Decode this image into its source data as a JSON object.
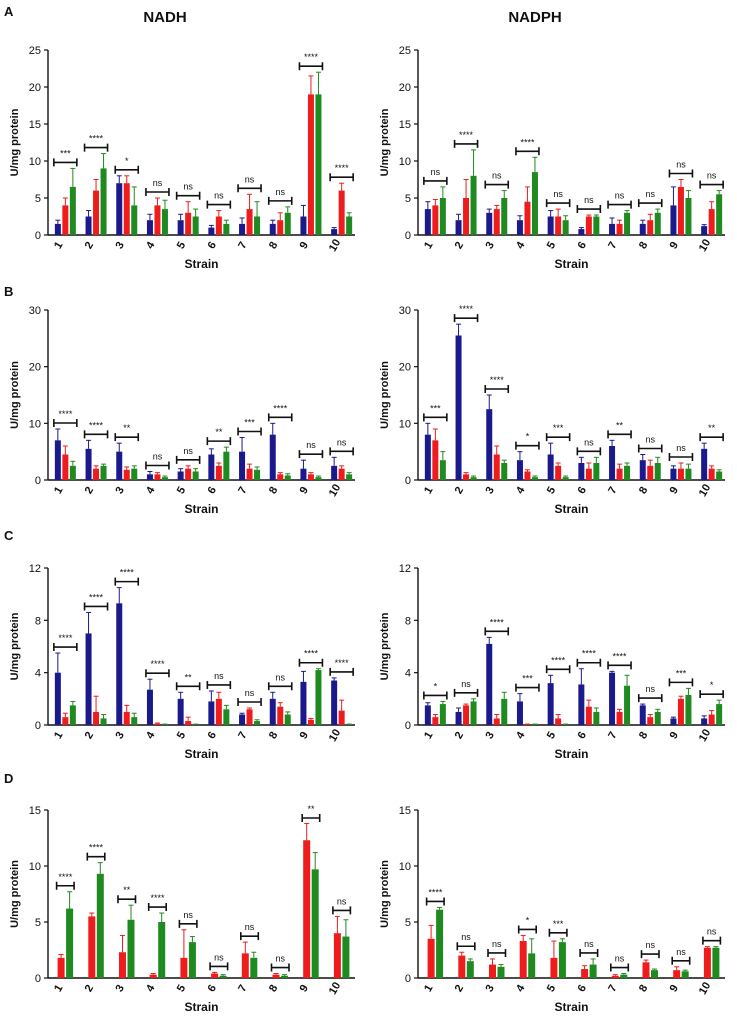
{
  "figure": {
    "columns": [
      "NADH",
      "NADPH"
    ],
    "rows": [
      "A",
      "B",
      "C",
      "D"
    ],
    "colors": {
      "blue": "#1a1a8c",
      "red": "#ee1c1c",
      "green": "#1f8a1f",
      "axis": "#111111"
    }
  },
  "chart_data": [
    {
      "type": "bar",
      "panel": "A",
      "title": "NADH",
      "xlabel": "Strain",
      "ylabel": "U/mg protein",
      "ylim": [
        0,
        25
      ],
      "yticks": [
        0,
        5,
        10,
        15,
        20,
        25
      ],
      "categories": [
        "1",
        "2",
        "3",
        "4",
        "5",
        "6",
        "7",
        "8",
        "9",
        "10"
      ],
      "series": [
        {
          "name": "blue",
          "values": [
            1.5,
            2.5,
            7,
            2,
            2,
            1,
            1.5,
            1.5,
            2.5,
            0.8
          ],
          "errors": [
            0.5,
            0.8,
            1,
            0.8,
            0.8,
            0.3,
            0.8,
            0.5,
            1.5,
            0.2
          ]
        },
        {
          "name": "red",
          "values": [
            4,
            6,
            7,
            4,
            3,
            2.5,
            3.5,
            2,
            19,
            6
          ],
          "errors": [
            1,
            1.5,
            1,
            1,
            1.5,
            0.8,
            2,
            1,
            2.5,
            1
          ]
        },
        {
          "name": "green",
          "values": [
            6.5,
            9,
            4,
            3.5,
            2.5,
            1.5,
            2.5,
            3,
            19,
            2.5
          ],
          "errors": [
            2.5,
            2,
            2.5,
            1.2,
            1,
            0.5,
            2,
            0.8,
            3,
            0.5
          ]
        }
      ],
      "significance": [
        "***",
        "****",
        "*",
        "ns",
        "ns",
        "ns",
        "ns",
        "ns",
        "****",
        "****"
      ]
    },
    {
      "type": "bar",
      "panel": "A",
      "title": "NADPH",
      "xlabel": "Strain",
      "ylabel": "U/mg protein",
      "ylim": [
        0,
        25
      ],
      "yticks": [
        0,
        5,
        10,
        15,
        20,
        25
      ],
      "categories": [
        "1",
        "2",
        "3",
        "4",
        "5",
        "6",
        "7",
        "8",
        "9",
        "10"
      ],
      "series": [
        {
          "name": "blue",
          "values": [
            3.5,
            2,
            3,
            2,
            2.5,
            0.8,
            1.5,
            1.5,
            4,
            1.2
          ],
          "errors": [
            1,
            0.8,
            0.5,
            0.6,
            0.8,
            0.2,
            0.8,
            0.5,
            2.5,
            0.2
          ]
        },
        {
          "name": "red",
          "values": [
            4,
            5,
            3.5,
            4.5,
            2.5,
            2.5,
            1.5,
            2,
            6.5,
            3.5
          ],
          "errors": [
            0.8,
            2.5,
            0.5,
            2,
            1,
            0.2,
            0.5,
            0.8,
            1,
            1
          ]
        },
        {
          "name": "green",
          "values": [
            5,
            8,
            5,
            8.5,
            2,
            2.5,
            3,
            3,
            5,
            5.5
          ],
          "errors": [
            1.5,
            3.5,
            1,
            2,
            0.6,
            0.2,
            0.3,
            0.5,
            1,
            0.5
          ]
        }
      ],
      "significance": [
        "ns",
        "****",
        "ns",
        "****",
        "ns",
        "ns",
        "ns",
        "ns",
        "ns",
        "ns"
      ]
    },
    {
      "type": "bar",
      "panel": "B",
      "title": "",
      "xlabel": "Strain",
      "ylabel": "U/mg protein",
      "ylim": [
        0,
        30
      ],
      "yticks": [
        0,
        10,
        20,
        30
      ],
      "categories": [
        "1",
        "2",
        "3",
        "4",
        "5",
        "6",
        "7",
        "8",
        "9",
        "10"
      ],
      "series": [
        {
          "name": "blue",
          "values": [
            7,
            5.5,
            5,
            1,
            1.5,
            4.5,
            5,
            8,
            2,
            2.5
          ],
          "errors": [
            2,
            1.5,
            1.5,
            0.5,
            0.5,
            1,
            2.5,
            2,
            1.5,
            1.5
          ]
        },
        {
          "name": "red",
          "values": [
            4.5,
            2,
            1.8,
            1,
            2,
            2.5,
            2,
            1,
            1,
            2
          ],
          "errors": [
            1.5,
            0.5,
            0.5,
            0.3,
            0.5,
            0.5,
            0.8,
            0.3,
            0.3,
            0.5
          ]
        },
        {
          "name": "green",
          "values": [
            2.5,
            2.5,
            2,
            0.5,
            1.5,
            5,
            1.8,
            0.8,
            0.5,
            1
          ],
          "errors": [
            0.8,
            0.3,
            0.5,
            0.2,
            0.5,
            0.8,
            0.5,
            0.3,
            0.2,
            0.3
          ]
        }
      ],
      "significance": [
        "****",
        "****",
        "**",
        "ns",
        "ns",
        "**",
        "***",
        "****",
        "ns",
        "ns"
      ]
    },
    {
      "type": "bar",
      "panel": "B",
      "title": "",
      "xlabel": "Strain",
      "ylabel": "U/mg protein",
      "ylim": [
        0,
        30
      ],
      "yticks": [
        0,
        10,
        20,
        30
      ],
      "categories": [
        "1",
        "2",
        "3",
        "4",
        "5",
        "6",
        "7",
        "8",
        "9",
        "10"
      ],
      "series": [
        {
          "name": "blue",
          "values": [
            8,
            25.5,
            12.5,
            3.5,
            4.5,
            3,
            6,
            3.5,
            2,
            5.5
          ],
          "errors": [
            2,
            2,
            2.5,
            1.5,
            2,
            1,
            1,
            1,
            0.5,
            1
          ]
        },
        {
          "name": "red",
          "values": [
            7,
            1,
            4.5,
            1.5,
            2.5,
            2,
            2,
            2.5,
            2,
            2
          ],
          "errors": [
            2,
            0.3,
            1.5,
            0.3,
            0.5,
            1,
            0.8,
            1,
            1,
            0.5
          ]
        },
        {
          "name": "green",
          "values": [
            3.5,
            0.5,
            3,
            0.5,
            0.5,
            3,
            2.5,
            3,
            2,
            1.5
          ],
          "errors": [
            1.5,
            0.2,
            0.5,
            0.2,
            0.2,
            1,
            0.5,
            1,
            0.8,
            0.3
          ]
        }
      ],
      "significance": [
        "***",
        "****",
        "****",
        "*",
        "***",
        "ns",
        "**",
        "ns",
        "ns",
        "**"
      ]
    },
    {
      "type": "bar",
      "panel": "C",
      "title": "",
      "xlabel": "Strain",
      "ylabel": "U/mg protein",
      "ylim": [
        0,
        12
      ],
      "yticks": [
        0,
        4,
        8,
        12
      ],
      "categories": [
        "1",
        "2",
        "3",
        "4",
        "5",
        "6",
        "7",
        "8",
        "9",
        "10"
      ],
      "series": [
        {
          "name": "blue",
          "values": [
            4,
            7,
            9.3,
            2.7,
            2,
            1.8,
            0.8,
            2,
            3.3,
            3.4
          ],
          "errors": [
            1.5,
            1.6,
            1.2,
            0.8,
            0.5,
            0.8,
            0.1,
            0.5,
            0.8,
            0.2
          ]
        },
        {
          "name": "red",
          "values": [
            0.6,
            1,
            1,
            0.1,
            0.3,
            2,
            1.2,
            1.4,
            0.4,
            1.1
          ],
          "errors": [
            0.3,
            1.2,
            0.5,
            0.05,
            0.3,
            0.5,
            0.1,
            0.3,
            0.1,
            0.8
          ]
        },
        {
          "name": "green",
          "values": [
            1.5,
            0.5,
            0.6,
            0.05,
            0.05,
            1.2,
            0.3,
            0.8,
            4.2,
            0.05
          ],
          "errors": [
            0.3,
            0.3,
            0.3,
            0.02,
            0.02,
            0.3,
            0.1,
            0.2,
            0.1,
            0.02
          ]
        }
      ],
      "significance": [
        "****",
        "****",
        "****",
        "****",
        "**",
        "ns",
        "ns",
        "ns",
        "****",
        "****"
      ]
    },
    {
      "type": "bar",
      "panel": "C",
      "title": "",
      "xlabel": "Strain",
      "ylabel": "U/mg protein",
      "ylim": [
        0,
        12
      ],
      "yticks": [
        0,
        4,
        8,
        12
      ],
      "categories": [
        "1",
        "2",
        "3",
        "4",
        "5",
        "6",
        "7",
        "8",
        "9",
        "10"
      ],
      "series": [
        {
          "name": "blue",
          "values": [
            1.5,
            1,
            6.2,
            1.8,
            3.2,
            3.1,
            4,
            1.5,
            0.5,
            0.5
          ],
          "errors": [
            0.2,
            0.3,
            0.5,
            0.6,
            0.6,
            1.2,
            0.1,
            0.1,
            0.1,
            0.2
          ]
        },
        {
          "name": "red",
          "values": [
            0.6,
            1.5,
            0.5,
            0.05,
            0.5,
            1.4,
            1,
            0.6,
            2,
            0.8
          ],
          "errors": [
            0.2,
            0.1,
            0.3,
            0.02,
            0.3,
            0.5,
            0.2,
            0.2,
            0.2,
            0.3
          ]
        },
        {
          "name": "green",
          "values": [
            1.6,
            1.8,
            2,
            0.05,
            0.05,
            1,
            3,
            1,
            2.3,
            1.6
          ],
          "errors": [
            0.2,
            0.2,
            0.5,
            0.02,
            0.02,
            0.3,
            0.8,
            0.2,
            0.5,
            0.3
          ]
        }
      ],
      "significance": [
        "*",
        "ns",
        "****",
        "***",
        "****",
        "****",
        "****",
        "ns",
        "***",
        "*"
      ]
    },
    {
      "type": "bar",
      "panel": "D",
      "title": "",
      "xlabel": "Strain",
      "ylabel": "U/mg protein",
      "ylim": [
        0,
        15
      ],
      "yticks": [
        0,
        5,
        10,
        15
      ],
      "categories": [
        "1",
        "2",
        "3",
        "4",
        "5",
        "6",
        "7",
        "8",
        "9",
        "10"
      ],
      "series": [
        {
          "name": "red",
          "values": [
            1.8,
            5.5,
            2.3,
            0.3,
            1.8,
            0.4,
            2.2,
            0.3,
            12.3,
            4
          ],
          "errors": [
            0.3,
            0.3,
            1.5,
            0.1,
            2.5,
            0.1,
            1,
            0.1,
            1.5,
            1.5
          ]
        },
        {
          "name": "green",
          "values": [
            6.2,
            9.3,
            5.2,
            5,
            3.2,
            0.2,
            1.8,
            0.2,
            9.7,
            3.7
          ],
          "errors": [
            1.5,
            1,
            1.3,
            0.8,
            0.5,
            0.1,
            0.5,
            0.1,
            1.5,
            1.5
          ]
        }
      ],
      "significance": [
        "****",
        "****",
        "**",
        "****",
        "ns",
        "ns",
        "ns",
        "ns",
        "**",
        "ns"
      ]
    },
    {
      "type": "bar",
      "panel": "D",
      "title": "",
      "xlabel": "Strain",
      "ylabel": "U/mg protein",
      "ylim": [
        0,
        15
      ],
      "yticks": [
        0,
        5,
        10,
        15
      ],
      "categories": [
        "1",
        "2",
        "3",
        "4",
        "5",
        "6",
        "7",
        "8",
        "9",
        "10"
      ],
      "series": [
        {
          "name": "red",
          "values": [
            3.5,
            2,
            1.2,
            3.3,
            1.8,
            0.8,
            0.2,
            1.4,
            0.7,
            2.7
          ],
          "errors": [
            1.2,
            0.3,
            0.5,
            0.5,
            1.5,
            0.3,
            0.1,
            0.2,
            0.3,
            0.1
          ]
        },
        {
          "name": "green",
          "values": [
            6.1,
            1.5,
            1,
            2.2,
            3.2,
            1.2,
            0.3,
            0.7,
            0.6,
            2.7
          ],
          "errors": [
            0.2,
            0.2,
            0.2,
            1.3,
            0.3,
            0.5,
            0.1,
            0.1,
            0.1,
            0.1
          ]
        }
      ],
      "significance": [
        "****",
        "ns",
        "ns",
        "*",
        "***",
        "ns",
        "ns",
        "ns",
        "ns",
        "ns"
      ]
    }
  ]
}
